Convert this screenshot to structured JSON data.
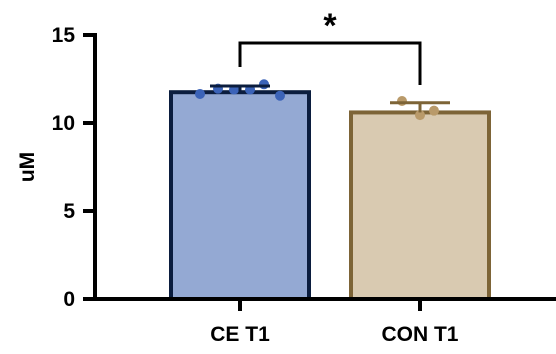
{
  "chart_data": {
    "type": "bar",
    "ylabel": "uM",
    "ylim": [
      0,
      15
    ],
    "yticks": [
      0,
      5,
      10,
      15
    ],
    "categories": [
      "CE T1",
      "CON T1"
    ],
    "values": [
      11.75,
      10.6
    ],
    "error": [
      0.35,
      0.55
    ],
    "points": [
      [
        11.65,
        11.95,
        11.9,
        11.9,
        12.2,
        11.55
      ],
      [
        11.25,
        10.45,
        10.7
      ]
    ],
    "colors": {
      "fill": [
        "#94a9d3",
        "#d9cab1"
      ],
      "edge": [
        "#0b1d3e",
        "#7d6437"
      ],
      "point": [
        "#3b63b8",
        "#b99a6a"
      ]
    },
    "annotation": {
      "text": "*",
      "between": [
        0,
        1
      ]
    }
  }
}
